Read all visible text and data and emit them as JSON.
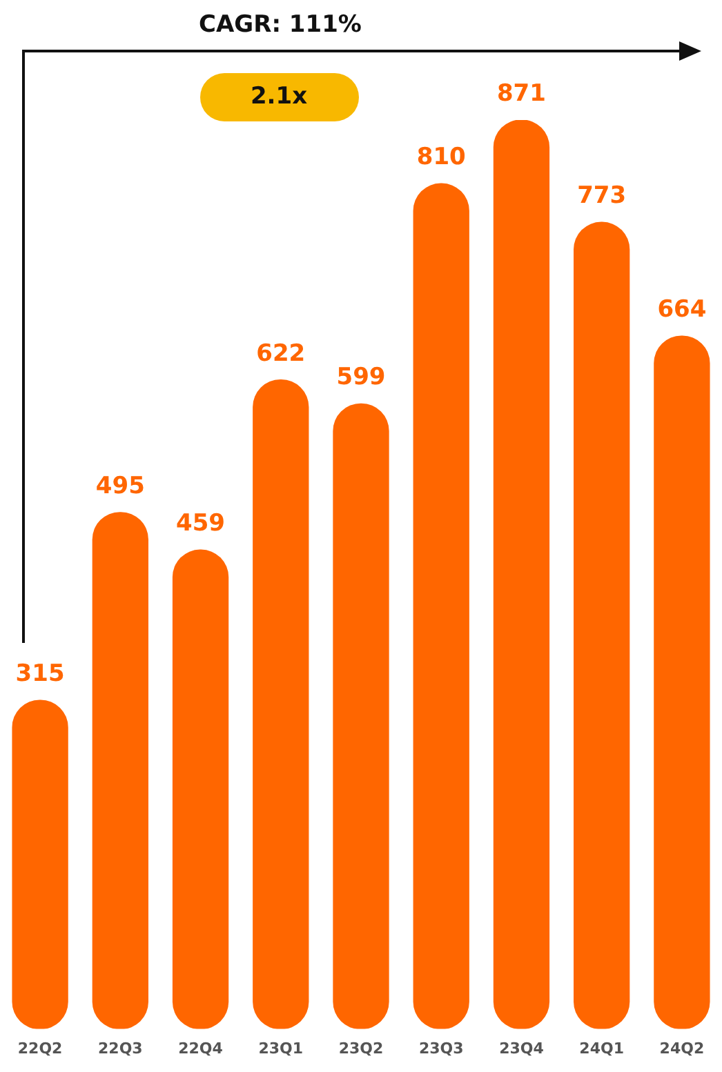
{
  "chart_data": {
    "type": "bar",
    "categories": [
      "22Q2",
      "22Q3",
      "22Q4",
      "23Q1",
      "23Q2",
      "23Q3",
      "23Q4",
      "24Q1",
      "24Q2"
    ],
    "values": [
      315,
      495,
      459,
      622,
      599,
      810,
      871,
      773,
      664
    ],
    "color": "#ff6600",
    "data_labels": true,
    "grid": false,
    "legend": false,
    "tick_labels": "x",
    "annotations": [
      "CAGR: 111%",
      "2.1x"
    ]
  }
}
